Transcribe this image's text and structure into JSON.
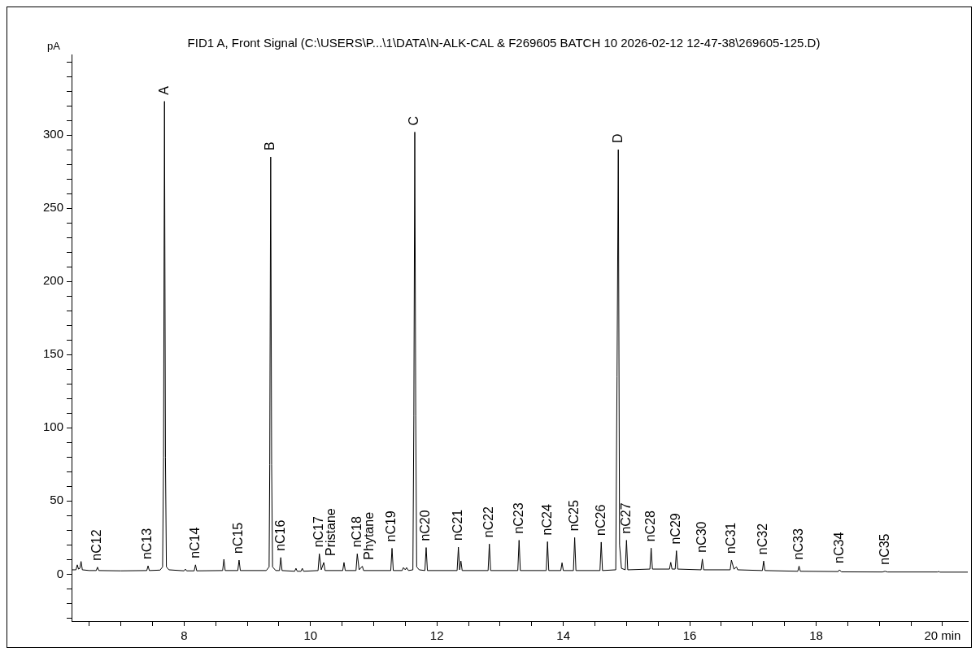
{
  "chart_data": {
    "type": "line",
    "title": "FID1 A, Front Signal (C:\\USERS\\P...\\1\\DATA\\N-ALK-CAL & F269605 BATCH 10 2026-02-12 12-47-38\\269605-125.D)",
    "ylabel": "pA",
    "marker": "none",
    "line_style": "solid",
    "grid": false,
    "legend": false,
    "xlim": [
      6.22,
      20.4
    ],
    "ylim": [
      -32,
      355
    ],
    "xticks": [
      {
        "value": 6.5,
        "label": null
      },
      {
        "value": 7,
        "label": null
      },
      {
        "value": 7.5,
        "label": null
      },
      8,
      {
        "value": 8.5,
        "label": null
      },
      {
        "value": 9,
        "label": null
      },
      {
        "value": 9.5,
        "label": null
      },
      10,
      {
        "value": 10.5,
        "label": null
      },
      {
        "value": 11,
        "label": null
      },
      {
        "value": 11.5,
        "label": null
      },
      12,
      {
        "value": 12.5,
        "label": null
      },
      {
        "value": 13,
        "label": null
      },
      {
        "value": 13.5,
        "label": null
      },
      14,
      {
        "value": 14.5,
        "label": null
      },
      {
        "value": 15,
        "label": null
      },
      {
        "value": 15.5,
        "label": null
      },
      16,
      {
        "value": 16.5,
        "label": null
      },
      {
        "value": 17,
        "label": null
      },
      {
        "value": 17.5,
        "label": null
      },
      18,
      {
        "value": 18.5,
        "label": null
      },
      {
        "value": 19,
        "label": null
      },
      {
        "value": 19.5,
        "label": null
      },
      {
        "value": 20,
        "label": "20 min"
      }
    ],
    "yticks": [
      {
        "value": -30,
        "label": null
      },
      {
        "value": -20,
        "label": null
      },
      {
        "value": -10,
        "label": null
      },
      0,
      {
        "value": 10,
        "label": null
      },
      {
        "value": 20,
        "label": null
      },
      {
        "value": 30,
        "label": null
      },
      {
        "value": 40,
        "label": null
      },
      50,
      {
        "value": 60,
        "label": null
      },
      {
        "value": 70,
        "label": null
      },
      {
        "value": 80,
        "label": null
      },
      {
        "value": 90,
        "label": null
      },
      100,
      {
        "value": 110,
        "label": null
      },
      {
        "value": 120,
        "label": null
      },
      {
        "value": 130,
        "label": null
      },
      {
        "value": 140,
        "label": null
      },
      150,
      {
        "value": 160,
        "label": null
      },
      {
        "value": 170,
        "label": null
      },
      {
        "value": 180,
        "label": null
      },
      {
        "value": 190,
        "label": null
      },
      200,
      {
        "value": 210,
        "label": null
      },
      {
        "value": 220,
        "label": null
      },
      {
        "value": 230,
        "label": null
      },
      {
        "value": 240,
        "label": null
      },
      250,
      {
        "value": 260,
        "label": null
      },
      {
        "value": 270,
        "label": null
      },
      {
        "value": 280,
        "label": null
      },
      {
        "value": 290,
        "label": null
      },
      300,
      {
        "value": 310,
        "label": null
      },
      {
        "value": 320,
        "label": null
      },
      {
        "value": 330,
        "label": null
      },
      {
        "value": 340,
        "label": null
      },
      {
        "value": 350,
        "label": null
      }
    ],
    "series": [
      {
        "color": "#000000",
        "x": [
          6.22,
          6.29,
          6.31,
          6.33,
          6.35,
          6.37,
          6.39,
          6.5,
          6.61,
          6.63,
          6.65,
          7.0,
          7.41,
          7.43,
          7.45,
          7.62,
          7.66,
          7.675,
          7.69,
          7.705,
          7.72,
          7.76,
          8.0,
          8.02,
          8.04,
          8.16,
          8.18,
          8.2,
          8.61,
          8.63,
          8.65,
          8.85,
          8.87,
          8.89,
          9.3,
          9.345,
          9.355,
          9.37,
          9.385,
          9.4,
          9.45,
          9.51,
          9.53,
          9.55,
          9.75,
          9.77,
          9.79,
          9.85,
          9.87,
          9.89,
          10.12,
          10.14,
          10.17,
          10.21,
          10.23,
          10.51,
          10.53,
          10.55,
          10.72,
          10.74,
          10.77,
          10.82,
          10.84,
          11.27,
          11.29,
          11.31,
          11.45,
          11.47,
          11.5,
          11.52,
          11.55,
          11.62,
          11.635,
          11.65,
          11.665,
          11.68,
          11.72,
          11.81,
          11.83,
          11.85,
          12.32,
          12.34,
          12.36,
          12.38,
          12.4,
          12.81,
          12.83,
          12.85,
          13.28,
          13.3,
          13.32,
          13.73,
          13.75,
          13.77,
          13.96,
          13.98,
          14.0,
          14.16,
          14.18,
          14.2,
          14.58,
          14.6,
          14.62,
          14.83,
          14.85,
          14.87,
          14.89,
          14.92,
          14.98,
          15.0,
          15.02,
          15.37,
          15.39,
          15.41,
          15.68,
          15.7,
          15.72,
          15.77,
          15.79,
          15.81,
          16.18,
          16.2,
          16.22,
          16.64,
          16.66,
          16.7,
          16.74,
          16.76,
          17.15,
          17.17,
          17.19,
          17.71,
          17.73,
          17.75,
          18.35,
          18.37,
          18.4,
          19.05,
          19.09,
          19.13,
          19.92,
          19.94,
          19.96,
          20.4
        ],
        "values": [
          3,
          3,
          6.4,
          3.5,
          4,
          8.7,
          3,
          2.5,
          2.5,
          4.8,
          2.5,
          2.3,
          2.5,
          5.7,
          2.5,
          2.8,
          5,
          80,
          323,
          80,
          5,
          3,
          2.3,
          3.5,
          2.3,
          2.3,
          6.4,
          2.3,
          2.5,
          10.2,
          2.5,
          2.5,
          9.6,
          2.5,
          2.5,
          5,
          75,
          285,
          75,
          5,
          2.5,
          2.5,
          11.4,
          2.5,
          2,
          4,
          2,
          2,
          4,
          2,
          2.5,
          13.9,
          3,
          8,
          2.5,
          2.5,
          8,
          2.5,
          2.5,
          13.9,
          3,
          5.4,
          2.5,
          2.5,
          17.7,
          2.5,
          2.5,
          4.5,
          3,
          4.5,
          2.5,
          3,
          108,
          302,
          108,
          5,
          3,
          2.5,
          18.2,
          2.5,
          2.5,
          18.5,
          3,
          9,
          2.5,
          2.5,
          20.6,
          2.5,
          2.5,
          23.2,
          2.5,
          2.5,
          22.2,
          2.5,
          2.5,
          7.8,
          2.5,
          2.5,
          25,
          2.5,
          2.5,
          21.9,
          2.5,
          3,
          135,
          290,
          20,
          4,
          3,
          23.2,
          3,
          3.5,
          17.8,
          3.5,
          3.5,
          8.1,
          3.5,
          3.5,
          16,
          3.5,
          3,
          10.3,
          3,
          3,
          9.6,
          3.5,
          5,
          3,
          2.5,
          9,
          2.5,
          2,
          5.5,
          2,
          1.8,
          3,
          1.6,
          1.5,
          2,
          1.5,
          1.5,
          1.8,
          1.4,
          1.4
        ]
      }
    ],
    "annotations": [
      {
        "text": "nC12",
        "x": 6.63,
        "y": 4.8
      },
      {
        "text": "nC13",
        "x": 7.43,
        "y": 5.7
      },
      {
        "text": "A",
        "x": 7.69,
        "y": 323
      },
      {
        "text": "nC14",
        "x": 8.18,
        "y": 6.4
      },
      {
        "text": "nC15",
        "x": 8.87,
        "y": 9.6
      },
      {
        "text": "B",
        "x": 9.37,
        "y": 285
      },
      {
        "text": "nC16",
        "x": 9.53,
        "y": 11.4
      },
      {
        "text": "nC17",
        "x": 10.14,
        "y": 13.9
      },
      {
        "text": "Pristane",
        "x": 10.21,
        "y": 8
      },
      {
        "text": "nC18",
        "x": 10.74,
        "y": 13.9
      },
      {
        "text": "Phytane",
        "x": 10.82,
        "y": 5.4
      },
      {
        "text": "nC19",
        "x": 11.29,
        "y": 17.7
      },
      {
        "text": "C",
        "x": 11.65,
        "y": 302
      },
      {
        "text": "nC20",
        "x": 11.83,
        "y": 18.2
      },
      {
        "text": "nC21",
        "x": 12.34,
        "y": 18.5
      },
      {
        "text": "nC22",
        "x": 12.83,
        "y": 20.6
      },
      {
        "text": "nC23",
        "x": 13.3,
        "y": 23.2
      },
      {
        "text": "nC24",
        "x": 13.75,
        "y": 22.2
      },
      {
        "text": "nC25",
        "x": 14.18,
        "y": 25
      },
      {
        "text": "nC26",
        "x": 14.6,
        "y": 21.9
      },
      {
        "text": "D",
        "x": 14.87,
        "y": 290
      },
      {
        "text": "nC27",
        "x": 15.0,
        "y": 23.2
      },
      {
        "text": "nC28",
        "x": 15.39,
        "y": 17.8
      },
      {
        "text": "nC29",
        "x": 15.79,
        "y": 16
      },
      {
        "text": "nC30",
        "x": 16.2,
        "y": 10.3
      },
      {
        "text": "nC31",
        "x": 16.66,
        "y": 9.6
      },
      {
        "text": "nC32",
        "x": 17.17,
        "y": 9
      },
      {
        "text": "nC33",
        "x": 17.73,
        "y": 5.5
      },
      {
        "text": "nC34",
        "x": 18.37,
        "y": 3
      },
      {
        "text": "nC35",
        "x": 19.09,
        "y": 2
      }
    ]
  }
}
